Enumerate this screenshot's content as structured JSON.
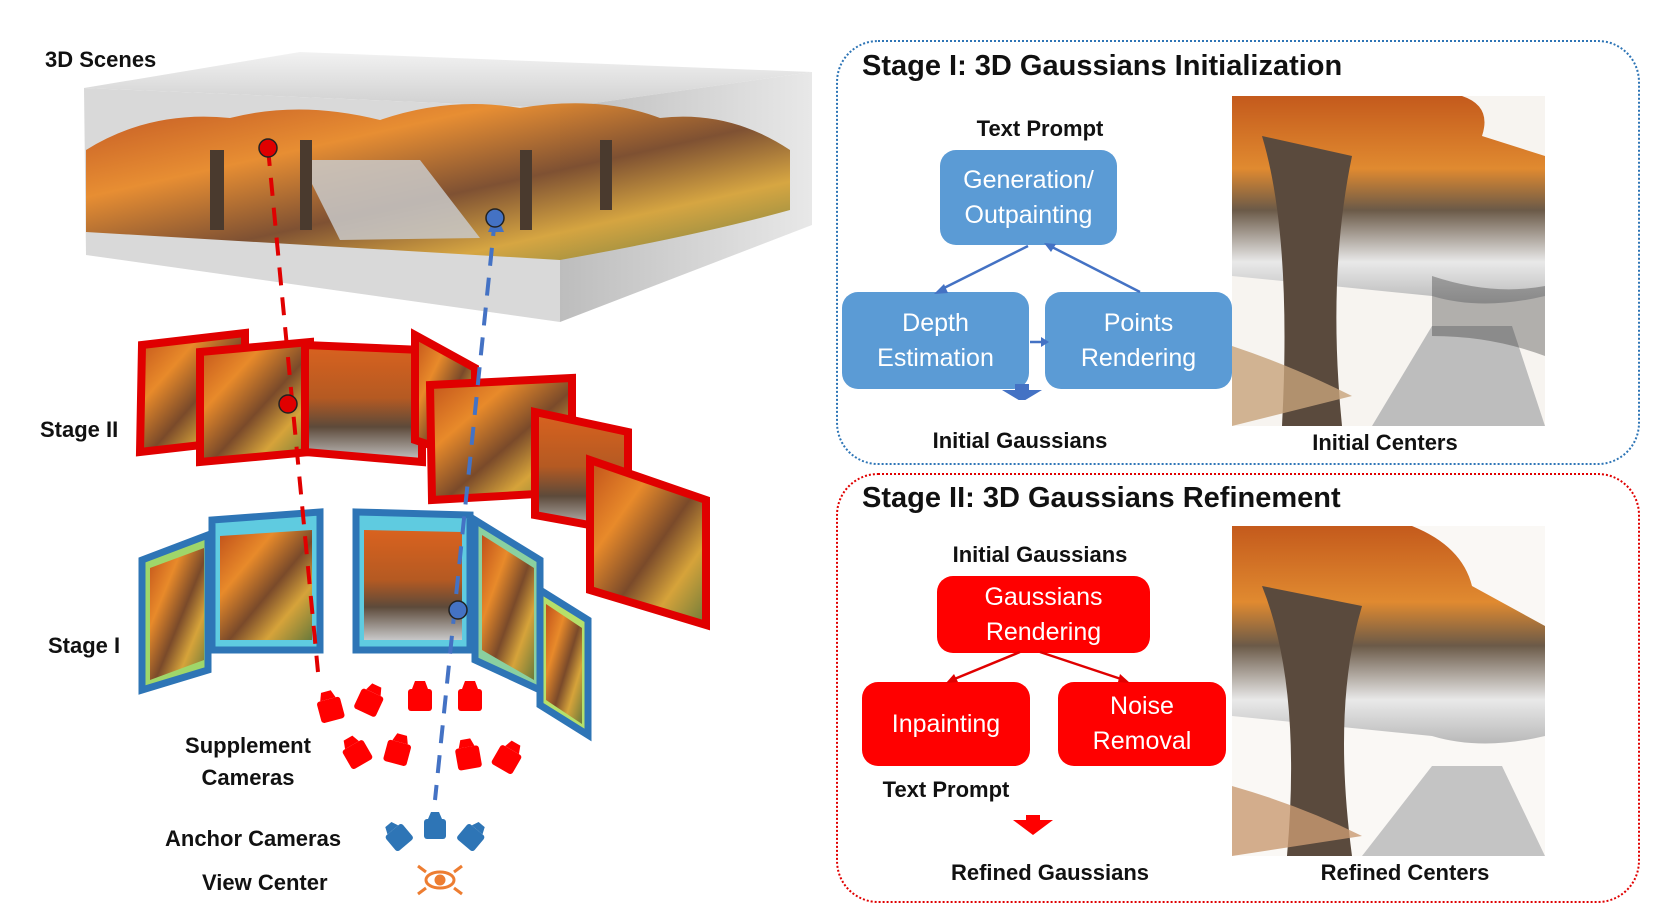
{
  "left": {
    "scene_label": "3D Scenes",
    "stage2_label": "Stage II",
    "stage1_label": "Stage I",
    "supplement_label": "Supplement\nCameras",
    "anchor_label": "Anchor Cameras",
    "view_center_label": "View Center"
  },
  "stage1": {
    "title": "Stage I: 3D Gaussians Initialization",
    "input_label": "Text Prompt",
    "box_generation": "Generation/\nOutpainting",
    "box_depth": "Depth\nEstimation",
    "box_points": "Points\nRendering",
    "output_label": "Initial Gaussians",
    "image_caption": "Initial Centers"
  },
  "stage2": {
    "title": "Stage II: 3D Gaussians Refinement",
    "input_label": "Initial Gaussians",
    "box_rendering": "Gaussians\nRendering",
    "box_inpainting": "Inpainting",
    "box_noise": "Noise\nRemoval",
    "prompt_label": "Text Prompt",
    "output_label": "Refined Gaussians",
    "image_caption": "Refined Centers"
  },
  "colors": {
    "stage1_blue": "#5b9bd5",
    "stage2_red": "#ff0000",
    "frame_blue": "#2e75b6",
    "view_center_orange": "#ed7d31"
  }
}
